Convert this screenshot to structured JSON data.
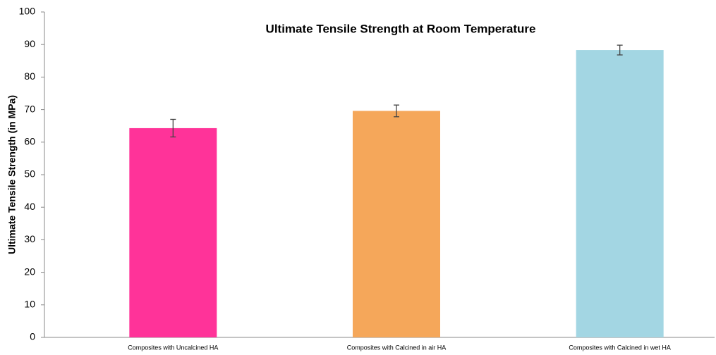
{
  "chart_data": {
    "type": "bar",
    "title": "Ultimate Tensile Strength at Room Temperature",
    "y_label": "Ultimate Tensile Strength (in MPa)",
    "categories": [
      "Composites with Uncalcined HA",
      "Composites with Calcined in air HA",
      "Composites with Calcined in wet HA"
    ],
    "values": [
      64.3,
      69.6,
      88.3
    ],
    "errors": [
      2.7,
      1.8,
      1.5
    ],
    "colors": [
      "#ff3399",
      "#f5a75a",
      "#a3d6e3"
    ],
    "ylim": [
      0,
      100
    ],
    "yticks": [
      0,
      10,
      20,
      30,
      40,
      50,
      60,
      70,
      80,
      90,
      100
    ],
    "grid": false
  }
}
